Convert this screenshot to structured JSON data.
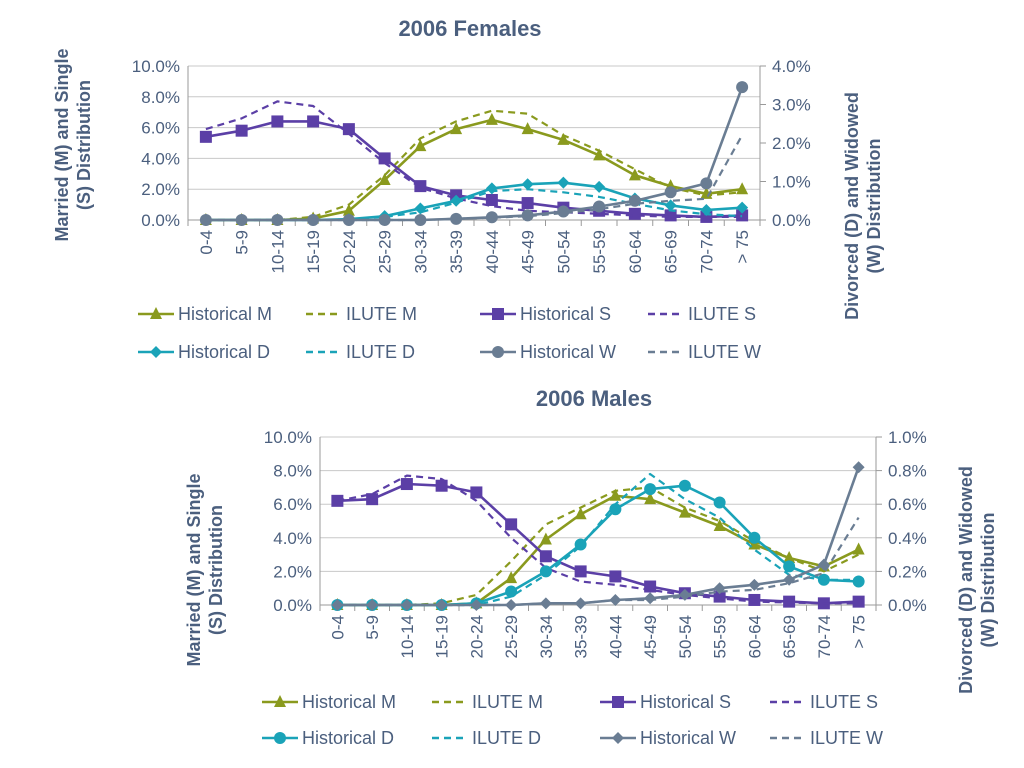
{
  "chart_data": [
    {
      "type": "line",
      "title": "2006 Females",
      "categories": [
        "0-4",
        "5-9",
        "10-14",
        "15-19",
        "20-24",
        "25-29",
        "30-34",
        "35-39",
        "40-44",
        "45-49",
        "50-54",
        "55-59",
        "60-64",
        "65-69",
        "70-74",
        "> 75"
      ],
      "ylabel": "Married (M) and Single (S) Distribution",
      "y2label": "Divorced (D) and Widowed (W) Distribution",
      "ylim": [
        0,
        0.1
      ],
      "y2lim": [
        0,
        0.04
      ],
      "yticks": [
        "0.0%",
        "2.0%",
        "4.0%",
        "6.0%",
        "8.0%",
        "10.0%"
      ],
      "y2ticks": [
        "0.0%",
        "1.0%",
        "2.0%",
        "3.0%",
        "4.0%"
      ],
      "legend_position": "bottom",
      "series": [
        {
          "name": "Historical M",
          "axis": "left",
          "color": "#8a9a1e",
          "dash": false,
          "marker": "triangle",
          "values": [
            0.0,
            0.0,
            0.0,
            0.001,
            0.006,
            0.026,
            0.048,
            0.059,
            0.065,
            0.059,
            0.052,
            0.042,
            0.029,
            0.022,
            0.017,
            0.02
          ]
        },
        {
          "name": "ILUTE M",
          "axis": "left",
          "color": "#8a9a1e",
          "dash": true,
          "marker": "none",
          "values": [
            0.0,
            0.0,
            0.0,
            0.002,
            0.01,
            0.029,
            0.053,
            0.064,
            0.071,
            0.069,
            0.055,
            0.045,
            0.033,
            0.021,
            0.016,
            0.018
          ]
        },
        {
          "name": "Historical S",
          "axis": "left",
          "color": "#5b3fa6",
          "dash": false,
          "marker": "square",
          "values": [
            0.054,
            0.058,
            0.064,
            0.064,
            0.059,
            0.04,
            0.022,
            0.016,
            0.013,
            0.011,
            0.008,
            0.006,
            0.004,
            0.003,
            0.002,
            0.003
          ]
        },
        {
          "name": "ILUTE S",
          "axis": "left",
          "color": "#5b3fa6",
          "dash": true,
          "marker": "none",
          "values": [
            0.059,
            0.066,
            0.077,
            0.074,
            0.056,
            0.037,
            0.021,
            0.014,
            0.009,
            0.006,
            0.005,
            0.004,
            0.003,
            0.002,
            0.002,
            0.002
          ]
        },
        {
          "name": "Historical D",
          "axis": "right",
          "color": "#1aa3b8",
          "dash": false,
          "marker": "diamond",
          "values": [
            0.0,
            0.0,
            0.0,
            0.0,
            0.0002,
            0.001,
            0.003,
            0.005,
            0.0082,
            0.0093,
            0.0097,
            0.0086,
            0.0056,
            0.0038,
            0.0026,
            0.0032
          ]
        },
        {
          "name": "ILUTE D",
          "axis": "right",
          "color": "#1aa3b8",
          "dash": true,
          "marker": "none",
          "values": [
            0.0,
            0.0,
            0.0,
            0.0,
            0.0002,
            0.0008,
            0.002,
            0.0045,
            0.0075,
            0.008,
            0.0072,
            0.006,
            0.0042,
            0.0025,
            0.0015,
            0.001
          ]
        },
        {
          "name": "Historical W",
          "axis": "right",
          "color": "#6a7d93",
          "dash": false,
          "marker": "circle",
          "values": [
            0.0,
            0.0,
            0.0,
            0.0,
            0.0,
            0.0,
            0.0,
            0.0003,
            0.0007,
            0.0012,
            0.0022,
            0.0035,
            0.005,
            0.0072,
            0.0095,
            0.0345
          ]
        },
        {
          "name": "ILUTE W",
          "axis": "right",
          "color": "#6a7d93",
          "dash": true,
          "marker": "none",
          "values": [
            0.0,
            0.0,
            0.0,
            0.0,
            0.0,
            0.0,
            0.0,
            0.0003,
            0.0006,
            0.001,
            0.0018,
            0.0028,
            0.0042,
            0.005,
            0.0055,
            0.022
          ]
        }
      ]
    },
    {
      "type": "line",
      "title": "2006 Males",
      "categories": [
        "0-4",
        "5-9",
        "10-14",
        "15-19",
        "20-24",
        "25-29",
        "30-34",
        "35-39",
        "40-44",
        "45-49",
        "50-54",
        "55-59",
        "60-64",
        "65-69",
        "70-74",
        "> 75"
      ],
      "ylabel": "Married (M) and Single (S) Distribution",
      "y2label": "Divorced (D) and Widowed (W) Distribution",
      "ylim": [
        0,
        0.1
      ],
      "y2lim": [
        0,
        0.01
      ],
      "yticks": [
        "0.0%",
        "2.0%",
        "4.0%",
        "6.0%",
        "8.0%",
        "10.0%"
      ],
      "y2ticks": [
        "0.0%",
        "0.2%",
        "0.4%",
        "0.6%",
        "0.8%",
        "1.0%"
      ],
      "legend_position": "bottom",
      "series": [
        {
          "name": "Historical M",
          "axis": "left",
          "color": "#8a9a1e",
          "dash": false,
          "marker": "triangle",
          "values": [
            0.0,
            0.0,
            0.0,
            0.0,
            0.001,
            0.016,
            0.039,
            0.054,
            0.065,
            0.063,
            0.055,
            0.047,
            0.036,
            0.028,
            0.023,
            0.033
          ]
        },
        {
          "name": "ILUTE M",
          "axis": "left",
          "color": "#8a9a1e",
          "dash": true,
          "marker": "none",
          "values": [
            0.0,
            0.0,
            0.0,
            0.001,
            0.006,
            0.026,
            0.048,
            0.058,
            0.068,
            0.07,
            0.058,
            0.05,
            0.038,
            0.028,
            0.02,
            0.03
          ]
        },
        {
          "name": "Historical S",
          "axis": "left",
          "color": "#5b3fa6",
          "dash": false,
          "marker": "square",
          "values": [
            0.062,
            0.063,
            0.072,
            0.071,
            0.067,
            0.048,
            0.029,
            0.02,
            0.017,
            0.011,
            0.007,
            0.005,
            0.003,
            0.002,
            0.001,
            0.002
          ]
        },
        {
          "name": "ILUTE S",
          "axis": "left",
          "color": "#5b3fa6",
          "dash": true,
          "marker": "none",
          "values": [
            0.062,
            0.066,
            0.077,
            0.075,
            0.062,
            0.04,
            0.022,
            0.014,
            0.012,
            0.009,
            0.006,
            0.004,
            0.002,
            0.0015,
            0.001,
            0.001
          ]
        },
        {
          "name": "Historical D",
          "axis": "right",
          "color": "#1aa3b8",
          "dash": false,
          "marker": "circle",
          "values": [
            0.0,
            0.0,
            0.0,
            0.0,
            0.0001,
            0.0008,
            0.002,
            0.0036,
            0.0057,
            0.0069,
            0.0071,
            0.0061,
            0.004,
            0.0023,
            0.0015,
            0.0014
          ]
        },
        {
          "name": "ILUTE D",
          "axis": "right",
          "color": "#1aa3b8",
          "dash": true,
          "marker": "none",
          "values": [
            0.0,
            0.0,
            0.0,
            0.0,
            0.0,
            0.0005,
            0.0018,
            0.0035,
            0.006,
            0.0078,
            0.0063,
            0.0052,
            0.0033,
            0.0018,
            0.0015,
            0.0015
          ]
        },
        {
          "name": "Historical W",
          "axis": "right",
          "color": "#6a7d93",
          "dash": false,
          "marker": "diamond",
          "values": [
            0.0,
            0.0,
            0.0,
            0.0,
            0.0,
            0.0,
            0.0001,
            0.0001,
            0.0003,
            0.0004,
            0.0006,
            0.001,
            0.0012,
            0.0015,
            0.0024,
            0.0082
          ]
        },
        {
          "name": "ILUTE W",
          "axis": "right",
          "color": "#6a7d93",
          "dash": true,
          "marker": "none",
          "values": [
            0.0,
            0.0,
            0.0,
            0.0,
            0.0,
            0.0,
            0.0001,
            0.0001,
            0.0003,
            0.0003,
            0.0005,
            0.0008,
            0.0009,
            0.0013,
            0.0019,
            0.0052
          ]
        }
      ]
    }
  ]
}
